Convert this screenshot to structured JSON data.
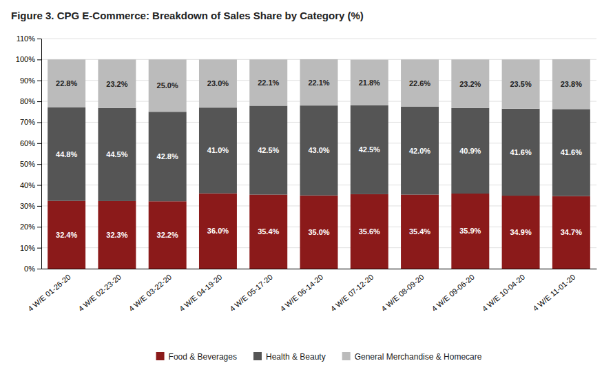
{
  "chart_data": {
    "type": "bar",
    "title": "Figure 3. CPG E-Commerce: Breakdown of Sales Share by Category (%)",
    "categories": [
      "4 W/E 01-26-20",
      "4 W/E 02-23-20",
      "4 W/E 03-22-20",
      "4 W/E 04-19-20",
      "4 W/E 05-17-20",
      "4 W/E 06-14-20",
      "4 W/E 07-12-20",
      "4 W/E 08-09-20",
      "4 W/E 09-06-20",
      "4 W/E 10-04-20",
      "4 W/E 11-01-20"
    ],
    "series": [
      {
        "name": "Food & Beverages",
        "color": "#8B1A1A",
        "values": [
          32.4,
          32.3,
          32.2,
          36.0,
          35.4,
          35.0,
          35.6,
          35.4,
          35.9,
          34.9,
          34.7
        ],
        "value_labels": [
          "32.4%",
          "32.3%",
          "32.2%",
          "36.0%",
          "35.4%",
          "35.0%",
          "35.6%",
          "35.4%",
          "35.9%",
          "34.9%",
          "34.7%"
        ]
      },
      {
        "name": "Health & Beauty",
        "color": "#555555",
        "values": [
          44.8,
          44.5,
          42.8,
          41.0,
          42.5,
          43.0,
          42.5,
          42.0,
          40.9,
          41.6,
          41.6
        ],
        "value_labels": [
          "44.8%",
          "44.5%",
          "42.8%",
          "41.0%",
          "42.5%",
          "43.0%",
          "42.5%",
          "42.0%",
          "40.9%",
          "41.6%",
          "41.6%"
        ]
      },
      {
        "name": "General Merchandise & Homecare",
        "color": "#BBBBBB",
        "values": [
          22.8,
          23.2,
          25.0,
          23.0,
          22.1,
          22.1,
          21.8,
          22.6,
          23.2,
          23.5,
          23.8
        ],
        "value_labels": [
          "22.8%",
          "23.2%",
          "25.0%",
          "23.0%",
          "22.1%",
          "22.1%",
          "21.8%",
          "22.6%",
          "23.2%",
          "23.5%",
          "23.8%"
        ]
      }
    ],
    "stacked": true,
    "data_labels": true,
    "ylim": [
      0,
      110
    ],
    "yticks": [
      {
        "value": 0,
        "label": "0%"
      },
      {
        "value": 10,
        "label": "10%"
      },
      {
        "value": 20,
        "label": "20%"
      },
      {
        "value": 30,
        "label": "30%"
      },
      {
        "value": 40,
        "label": "40%"
      },
      {
        "value": 50,
        "label": "50%"
      },
      {
        "value": 60,
        "label": "60%"
      },
      {
        "value": 70,
        "label": "70%"
      },
      {
        "value": 80,
        "label": "80%"
      },
      {
        "value": 90,
        "label": "90%"
      },
      {
        "value": 100,
        "label": "100%"
      },
      {
        "value": 110,
        "label": "110%"
      }
    ],
    "grid": true,
    "legend": "bottom"
  }
}
